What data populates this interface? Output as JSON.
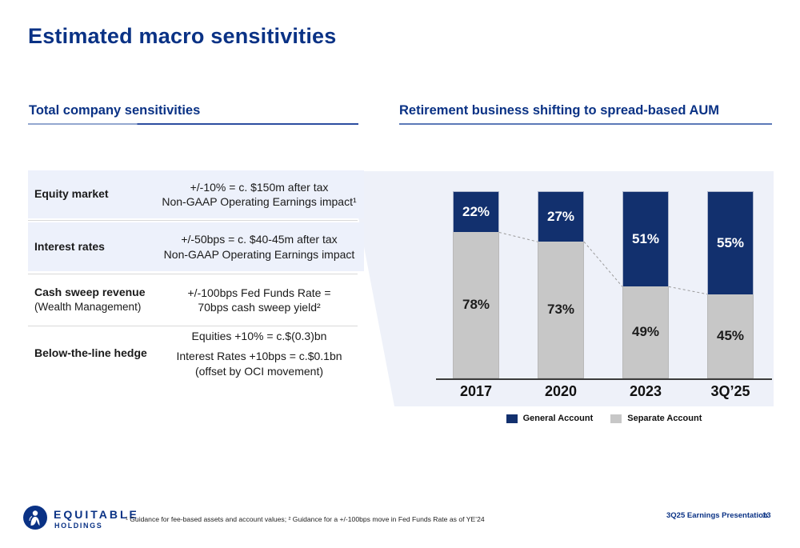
{
  "slide": {
    "title": "Estimated macro sensitivities",
    "footnote": "¹ Guidance for fee-based assets and account values; ² Guidance for a +/-100bps move in Fed Funds Rate as of YE’24",
    "footer_presentation": "3Q25 Earnings Presentation",
    "page_number": "13",
    "brand": {
      "name_top": "EQUITABLE",
      "name_bottom": "HOLDINGS"
    }
  },
  "left_section": {
    "header": "Total company sensitivities",
    "rows": [
      {
        "label": "Equity market",
        "sublabel": "",
        "value_lines": [
          "+/-10% = c. $150m after tax",
          "Non-GAAP Operating Earnings impact¹"
        ]
      },
      {
        "label": "Interest rates",
        "sublabel": "",
        "value_lines": [
          "+/-50bps = c. $40-45m after tax",
          "Non-GAAP Operating Earnings impact"
        ]
      },
      {
        "label": "Cash sweep revenue",
        "sublabel": "(Wealth Management)",
        "value_lines": [
          "+/-100bps Fed Funds Rate =",
          "70bps cash sweep yield²"
        ]
      },
      {
        "label": "Below-the-line hedge",
        "sublabel": "",
        "value_lines": [
          "Equities +10% = c.$(0.3)bn",
          "Interest Rates +10bps = c.$0.1bn",
          "(offset by OCI movement)"
        ]
      }
    ]
  },
  "right_section": {
    "header": "Retirement business shifting to spread-based AUM"
  },
  "chart_data": {
    "type": "bar",
    "stacked": true,
    "categories": [
      "2017",
      "2020",
      "2023",
      "3Q’25"
    ],
    "series": [
      {
        "name": "General Account",
        "color": "#12306e",
        "values": [
          22,
          27,
          51,
          55
        ],
        "labels": [
          "22%",
          "27%",
          "51%",
          "55%"
        ]
      },
      {
        "name": "Separate Account",
        "color": "#c7c7c7",
        "values": [
          78,
          73,
          49,
          45
        ],
        "labels": [
          "78%",
          "73%",
          "49%",
          "45%"
        ]
      }
    ],
    "unit": "%",
    "ylim": [
      0,
      100
    ],
    "grid": false,
    "legend_position": "bottom",
    "annotations": "dashed gray line tracing the General/Separate Account boundary between bars"
  },
  "colors": {
    "title_navy": "#0a3285",
    "bar_blue": "#12306e",
    "bar_gray": "#c7c7c7",
    "wedge_background": "#eef1f9",
    "row_background": "#edf1fb",
    "underline_blue": "#5b79b8",
    "axis": "#3c3c3c",
    "dash_line": "#9b9b9b"
  }
}
